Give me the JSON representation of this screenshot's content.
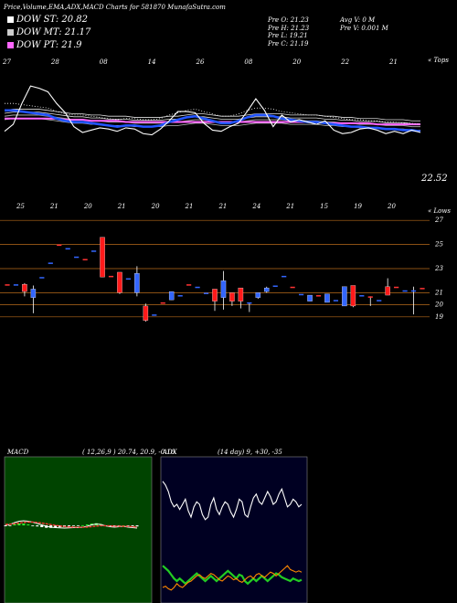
{
  "header": {
    "title": "Price,Volume,EMA,ADX,MACD Charts for 581870 MunafaSutra.com",
    "legend": [
      {
        "label": "DOW ST: 20.82",
        "color": "#ffffff"
      },
      {
        "label": "DOW MT: 21.17",
        "color": "#cccccc"
      },
      {
        "label": "DOW PT: 21.9",
        "color": "#ff66ff"
      }
    ],
    "stats_col1": [
      "Pre O: 21.23",
      "Pre H: 21.23",
      "Pre L: 19.21",
      "Pre C: 21.19"
    ],
    "stats_col2": [
      "Avg V: 0 M",
      "Pre V: 0.001 M"
    ]
  },
  "price_panel": {
    "top_dates": [
      "27",
      "28",
      "08",
      "14",
      "26",
      "08",
      "20",
      "22",
      "21"
    ],
    "top_label": "« Tops",
    "bottom_dates": [
      "25",
      "21",
      "20",
      "21",
      "20",
      "21",
      "21",
      "24",
      "21",
      "15",
      "19",
      "20"
    ],
    "bottom_label": "« Lows",
    "last_price": "22.52"
  },
  "chart_data": [
    {
      "type": "line",
      "name": "price_ema",
      "ylim": [
        17,
        28
      ],
      "series": [
        {
          "name": "",
          "color": "#ffffff",
          "values": [
            22.6,
            23.2,
            25,
            26.5,
            26.3,
            26,
            25,
            24.2,
            23,
            22.5,
            22.7,
            22.9,
            22.8,
            22.6,
            22.9,
            22.8,
            22.4,
            22.3,
            22.8,
            23.5,
            24.3,
            24.3,
            24.2,
            23.3,
            22.7,
            22.6,
            23,
            23.3,
            24.3,
            25.4,
            24.4,
            23,
            24,
            23.4,
            23.6,
            23.4,
            23.2,
            23.5,
            22.7,
            22.4,
            22.5,
            22.8,
            22.9,
            22.7,
            22.4,
            22.6,
            22.4,
            22.7,
            22.5
          ]
        },
        {
          "name": "",
          "color": "#2255ff",
          "values": [
            24.4,
            24.4,
            24.3,
            24.2,
            24.1,
            24,
            23.7,
            23.5,
            23.4,
            23.4,
            23.3,
            23.2,
            23.1,
            23,
            23.1,
            23.1,
            23,
            23,
            23.1,
            23.4,
            23.6,
            23.8,
            23.9,
            23.7,
            23.5,
            23.3,
            23.3,
            23.5,
            23.8,
            24,
            24,
            23.9,
            23.7,
            23.6,
            23.5,
            23.4,
            23.4,
            23.3,
            23.2,
            23.1,
            23,
            23,
            22.9,
            22.9,
            22.8,
            22.8,
            22.7,
            22.7,
            22.6
          ]
        },
        {
          "name": "",
          "color": "#ff66ff",
          "values": [
            23.7,
            23.7,
            23.7,
            23.7,
            23.7,
            23.7,
            23.7,
            23.6,
            23.6,
            23.6,
            23.5,
            23.5,
            23.5,
            23.5,
            23.4,
            23.4,
            23.4,
            23.4,
            23.4,
            23.4,
            23.4,
            23.4,
            23.4,
            23.4,
            23.4,
            23.4,
            23.4,
            23.4,
            23.4,
            23.4,
            23.4,
            23.4,
            23.4,
            23.4,
            23.4,
            23.4,
            23.4,
            23.3,
            23.3,
            23.3,
            23.3,
            23.3,
            23.3,
            23.2,
            23.2,
            23.2,
            23.2,
            23.2,
            23.2
          ]
        },
        {
          "name": "",
          "color": "#999999",
          "values": [
            23.9,
            24,
            24,
            24,
            24,
            23.9,
            23.8,
            23.7,
            23.6,
            23.6,
            23.5,
            23.5,
            23.4,
            23.4,
            23.4,
            23.3,
            23.3,
            23.3,
            23.3,
            23.4,
            23.4,
            23.5,
            23.6,
            23.6,
            23.5,
            23.4,
            23.4,
            23.4,
            23.5,
            23.6,
            23.6,
            23.6,
            23.6,
            23.5,
            23.5,
            23.5,
            23.5,
            23.4,
            23.4,
            23.3,
            23.3,
            23.2,
            23.2,
            23.2,
            23.1,
            23.1,
            23.1,
            23,
            23
          ]
        }
      ]
    },
    {
      "type": "bar",
      "name": "candles",
      "yticks": [
        19,
        20,
        21,
        23,
        25,
        27
      ],
      "ylim": [
        18,
        28
      ],
      "candles": [
        {
          "o": 21.7,
          "c": 21.7,
          "h": 21.7,
          "l": 21.7
        },
        {
          "o": 21.7,
          "c": 21.7,
          "h": 21.7,
          "l": 21.7
        },
        {
          "o": 21.7,
          "c": 21.1,
          "h": 21.8,
          "l": 20.7
        },
        {
          "o": 20.6,
          "c": 21.3,
          "h": 21.6,
          "l": 19.3
        },
        {
          "o": 22.3,
          "c": 22.3,
          "h": 22.3,
          "l": 22.3
        },
        {
          "o": 23.5,
          "c": 23.5,
          "h": 23.5,
          "l": 23.5
        },
        {
          "o": 25,
          "c": 25,
          "h": 25,
          "l": 25
        },
        {
          "o": 24.7,
          "c": 24.7,
          "h": 24.7,
          "l": 24.7
        },
        {
          "o": 24,
          "c": 24,
          "h": 24,
          "l": 24
        },
        {
          "o": 23.8,
          "c": 23.8,
          "h": 23.8,
          "l": 23.8
        },
        {
          "o": 24.5,
          "c": 24.5,
          "h": 24.5,
          "l": 24.5
        },
        {
          "o": 25.6,
          "c": 22.3,
          "h": 25.6,
          "l": 22.3
        },
        {
          "o": 22.4,
          "c": 22.4,
          "h": 22.4,
          "l": 22.4
        },
        {
          "o": 22.7,
          "c": 21,
          "h": 22.7,
          "l": 20.9
        },
        {
          "o": 22.2,
          "c": 22.2,
          "h": 22.2,
          "l": 22.2
        },
        {
          "o": 21,
          "c": 22.6,
          "h": 23.2,
          "l": 20.7
        },
        {
          "o": 19.9,
          "c": 18.7,
          "h": 20.1,
          "l": 18.6
        },
        {
          "o": 19.2,
          "c": 19.2,
          "h": 19.2,
          "l": 19.2
        },
        {
          "o": 20.2,
          "c": 20.2,
          "h": 20.2,
          "l": 20.2
        },
        {
          "o": 20.4,
          "c": 21.1,
          "h": 21.1,
          "l": 20.4
        },
        {
          "o": 20.8,
          "c": 20.8,
          "h": 20.8,
          "l": 20.8
        },
        {
          "o": 21.7,
          "c": 21.7,
          "h": 21.7,
          "l": 21.7
        },
        {
          "o": 21.5,
          "c": 21.5,
          "h": 21.5,
          "l": 21.5
        },
        {
          "o": 21,
          "c": 21,
          "h": 21,
          "l": 21
        },
        {
          "o": 21.3,
          "c": 20.3,
          "h": 21.3,
          "l": 19.5
        },
        {
          "o": 20.6,
          "c": 22,
          "h": 22.8,
          "l": 19.6
        },
        {
          "o": 21,
          "c": 20.3,
          "h": 21,
          "l": 19.9
        },
        {
          "o": 21.4,
          "c": 20.3,
          "h": 21.4,
          "l": 19.7
        },
        {
          "o": 20.2,
          "c": 20.2,
          "h": 20.2,
          "l": 19.4
        },
        {
          "o": 20.6,
          "c": 21,
          "h": 21,
          "l": 20.5
        },
        {
          "o": 21.1,
          "c": 21.4,
          "h": 21.5,
          "l": 21
        },
        {
          "o": 21.6,
          "c": 21.6,
          "h": 21.6,
          "l": 21.6
        },
        {
          "o": 22.4,
          "c": 22.4,
          "h": 22.4,
          "l": 22.4
        },
        {
          "o": 21.5,
          "c": 21.5,
          "h": 21.5,
          "l": 21.5
        },
        {
          "o": 20.9,
          "c": 20.9,
          "h": 20.9,
          "l": 20.9
        },
        {
          "o": 20.3,
          "c": 20.8,
          "h": 20.8,
          "l": 20.3
        },
        {
          "o": 20.8,
          "c": 20.8,
          "h": 20.8,
          "l": 20.8
        },
        {
          "o": 20.2,
          "c": 20.9,
          "h": 20.9,
          "l": 20.2
        },
        {
          "o": 20.4,
          "c": 20.4,
          "h": 20.4,
          "l": 20.4
        },
        {
          "o": 19.9,
          "c": 21.5,
          "h": 21.5,
          "l": 19.9
        },
        {
          "o": 21.6,
          "c": 19.9,
          "h": 21.6,
          "l": 19.8
        },
        {
          "o": 20.8,
          "c": 20.8,
          "h": 20.8,
          "l": 20.8
        },
        {
          "o": 20.7,
          "c": 20.7,
          "h": 20.7,
          "l": 19.9
        },
        {
          "o": 20.4,
          "c": 20.4,
          "h": 20.4,
          "l": 20.4
        },
        {
          "o": 21.5,
          "c": 20.8,
          "h": 22.2,
          "l": 20.8
        },
        {
          "o": 21.5,
          "c": 21.5,
          "h": 21.5,
          "l": 21.5
        },
        {
          "o": 21.2,
          "c": 21.2,
          "h": 21.2,
          "l": 21.2
        },
        {
          "o": 21.2,
          "c": 21.2,
          "h": 21.5,
          "l": 19.2
        },
        {
          "o": 21.4,
          "c": 21.4,
          "h": 21.4,
          "l": 21.4
        }
      ]
    },
    {
      "type": "line",
      "name": "macd",
      "title": "MACD",
      "params": "( 12,26,9 ) 20.74, 20.9, -0.16",
      "ylim": [
        -3,
        3
      ],
      "series": [
        {
          "name": "",
          "color": "#ffffff",
          "values": [
            0,
            0.1,
            0.3,
            0.45,
            0.5,
            0.45,
            0.35,
            0.2,
            0.05,
            -0.1,
            -0.2,
            -0.25,
            -0.28,
            -0.3,
            -0.27,
            -0.25,
            -0.25,
            -0.2,
            -0.1,
            0.05,
            0.15,
            0.1,
            -0.05,
            -0.15,
            -0.2,
            -0.15,
            -0.1,
            -0.2,
            -0.25,
            -0.3
          ]
        },
        {
          "name": "",
          "color": "#ff3333",
          "values": [
            0.1,
            0.12,
            0.18,
            0.25,
            0.32,
            0.36,
            0.36,
            0.32,
            0.25,
            0.17,
            0.08,
            0,
            -0.07,
            -0.13,
            -0.17,
            -0.19,
            -0.21,
            -0.21,
            -0.19,
            -0.14,
            -0.08,
            -0.04,
            -0.04,
            -0.06,
            -0.09,
            -0.1,
            -0.1,
            -0.12,
            -0.15,
            -0.18
          ]
        }
      ],
      "histogram": [
        -0.1,
        -0.02,
        0.12,
        0.2,
        0.18,
        0.09,
        -0.01,
        -0.12,
        -0.2,
        -0.27,
        -0.28,
        -0.25,
        -0.21,
        -0.17,
        -0.1,
        -0.06,
        -0.04,
        0.01,
        0.09,
        0.19,
        0.23,
        0.14,
        -0.01,
        -0.09,
        -0.11,
        -0.05,
        0,
        -0.08,
        -0.1,
        -0.12
      ]
    },
    {
      "type": "line",
      "name": "adx",
      "title": "ADX",
      "params": "(14 day) 9, +30, -35",
      "ylim": [
        0,
        100
      ],
      "series": [
        {
          "name": "",
          "color": "#ffffff",
          "values": [
            88,
            85,
            80,
            72,
            68,
            70,
            66,
            70,
            74,
            65,
            60,
            68,
            72,
            70,
            62,
            58,
            60,
            70,
            75,
            66,
            62,
            68,
            72,
            70,
            64,
            60,
            66,
            74,
            72,
            62,
            60,
            68,
            75,
            78,
            72,
            70,
            75,
            80,
            76,
            70,
            72,
            78,
            82,
            75,
            68,
            70,
            74,
            72,
            68,
            70
          ]
        },
        {
          "name": "",
          "color": "#22cc22",
          "values": [
            22,
            20,
            18,
            15,
            12,
            10,
            12,
            10,
            8,
            10,
            12,
            14,
            16,
            14,
            12,
            10,
            12,
            14,
            12,
            10,
            12,
            14,
            16,
            18,
            16,
            14,
            12,
            15,
            14,
            10,
            8,
            10,
            12,
            10,
            12,
            14,
            12,
            10,
            12,
            14,
            16,
            15,
            13,
            12,
            11,
            10,
            12,
            11,
            10,
            11
          ]
        },
        {
          "name": "",
          "color": "#ff8800",
          "values": [
            5,
            6,
            4,
            3,
            5,
            8,
            6,
            5,
            7,
            9,
            10,
            12,
            14,
            15,
            13,
            12,
            14,
            16,
            15,
            13,
            11,
            10,
            12,
            14,
            13,
            11,
            12,
            10,
            9,
            11,
            13,
            14,
            12,
            15,
            16,
            14,
            13,
            15,
            17,
            16,
            14,
            16,
            18,
            20,
            22,
            19,
            18,
            17,
            18,
            17
          ]
        }
      ]
    }
  ]
}
